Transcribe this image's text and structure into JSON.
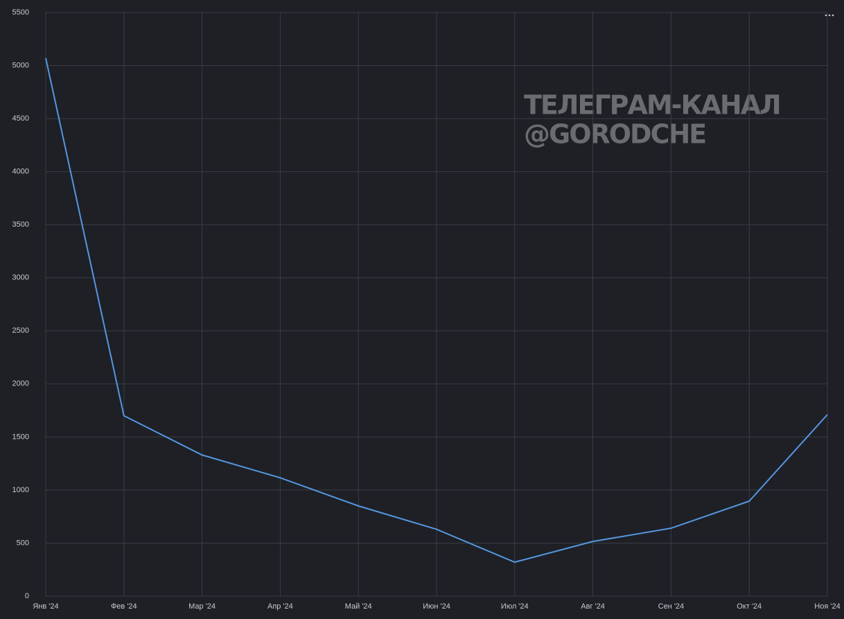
{
  "chart_data": {
    "type": "line",
    "annotations": [
      "ТЕЛЕГРАМ-КАНАЛ",
      "@GORODCHE"
    ],
    "categories": [
      "Янв '24",
      "Фев '24",
      "Мар '24",
      "Апр '24",
      "Май '24",
      "Июн '24",
      "Июл '24",
      "Авг '24",
      "Сен '24",
      "Окт '24",
      "Ноя '24"
    ],
    "values": [
      5070,
      1700,
      1330,
      1115,
      850,
      630,
      320,
      515,
      640,
      895,
      1710
    ],
    "color": "#5597e0",
    "ylim": [
      0,
      5500
    ],
    "yticks": [
      0,
      500,
      1000,
      1500,
      2000,
      2500,
      3000,
      3500,
      4000,
      4500,
      5000,
      5500
    ],
    "grid": true
  }
}
